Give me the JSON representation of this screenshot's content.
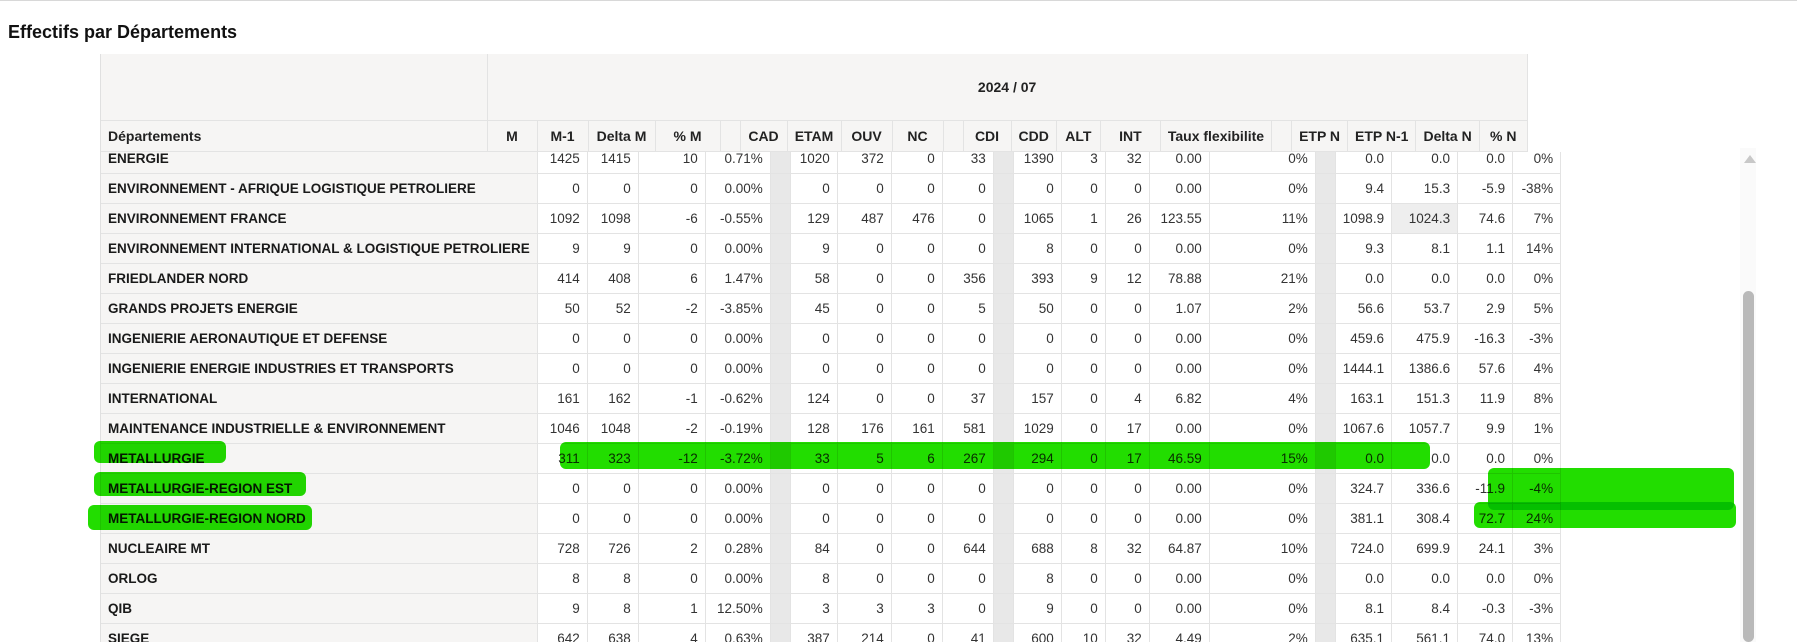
{
  "page_title": "Effectifs par Départements",
  "period": "2024 / 07",
  "columns": {
    "dept": "Départements",
    "m": "M",
    "m1": "M-1",
    "delta_m": "Delta M",
    "pct_m": "% M",
    "cad": "CAD",
    "etam": "ETAM",
    "ouv": "OUV",
    "nc": "NC",
    "cdi": "CDI",
    "cdd": "CDD",
    "alt": "ALT",
    "int": "INT",
    "taux": "Taux flexibilite",
    "etp_n": "ETP N",
    "etp_n1": "ETP N-1",
    "delta_n": "Delta N",
    "pct_n": "% N"
  },
  "rows": [
    {
      "dept": "ENERGIE",
      "m": "1425",
      "m1": "1415",
      "delta_m": "10",
      "pct_m": "0.71%",
      "cad": "1020",
      "etam": "372",
      "ouv": "0",
      "nc": "33",
      "cdi": "1390",
      "cdd": "3",
      "alt": "32",
      "int": "0.00",
      "taux": "0%",
      "etp_n": "0.0",
      "etp_n1": "0.0",
      "delta_n": "0.0",
      "pct_n": "0%"
    },
    {
      "dept": "ENVIRONNEMENT - AFRIQUE LOGISTIQUE PETROLIERE",
      "m": "0",
      "m1": "0",
      "delta_m": "0",
      "pct_m": "0.00%",
      "cad": "0",
      "etam": "0",
      "ouv": "0",
      "nc": "0",
      "cdi": "0",
      "cdd": "0",
      "alt": "0",
      "int": "0.00",
      "taux": "0%",
      "etp_n": "9.4",
      "etp_n1": "15.3",
      "delta_n": "-5.9",
      "pct_n": "-38%"
    },
    {
      "dept": "ENVIRONNEMENT FRANCE",
      "m": "1092",
      "m1": "1098",
      "delta_m": "-6",
      "pct_m": "-0.55%",
      "cad": "129",
      "etam": "487",
      "ouv": "476",
      "nc": "0",
      "cdi": "1065",
      "cdd": "1",
      "alt": "26",
      "int": "123.55",
      "taux": "11%",
      "etp_n": "1098.9",
      "etp_n1": "1024.3",
      "delta_n": "74.6",
      "pct_n": "7%"
    },
    {
      "dept": "ENVIRONNEMENT INTERNATIONAL & LOGISTIQUE PETROLIERE",
      "m": "9",
      "m1": "9",
      "delta_m": "0",
      "pct_m": "0.00%",
      "cad": "9",
      "etam": "0",
      "ouv": "0",
      "nc": "0",
      "cdi": "8",
      "cdd": "0",
      "alt": "0",
      "int": "0.00",
      "taux": "0%",
      "etp_n": "9.3",
      "etp_n1": "8.1",
      "delta_n": "1.1",
      "pct_n": "14%"
    },
    {
      "dept": "FRIEDLANDER NORD",
      "m": "414",
      "m1": "408",
      "delta_m": "6",
      "pct_m": "1.47%",
      "cad": "58",
      "etam": "0",
      "ouv": "0",
      "nc": "356",
      "cdi": "393",
      "cdd": "9",
      "alt": "12",
      "int": "78.88",
      "taux": "21%",
      "etp_n": "0.0",
      "etp_n1": "0.0",
      "delta_n": "0.0",
      "pct_n": "0%"
    },
    {
      "dept": "GRANDS PROJETS ENERGIE",
      "m": "50",
      "m1": "52",
      "delta_m": "-2",
      "pct_m": "-3.85%",
      "cad": "45",
      "etam": "0",
      "ouv": "0",
      "nc": "5",
      "cdi": "50",
      "cdd": "0",
      "alt": "0",
      "int": "1.07",
      "taux": "2%",
      "etp_n": "56.6",
      "etp_n1": "53.7",
      "delta_n": "2.9",
      "pct_n": "5%"
    },
    {
      "dept": "INGENIERIE AERONAUTIQUE ET DEFENSE",
      "m": "0",
      "m1": "0",
      "delta_m": "0",
      "pct_m": "0.00%",
      "cad": "0",
      "etam": "0",
      "ouv": "0",
      "nc": "0",
      "cdi": "0",
      "cdd": "0",
      "alt": "0",
      "int": "0.00",
      "taux": "0%",
      "etp_n": "459.6",
      "etp_n1": "475.9",
      "delta_n": "-16.3",
      "pct_n": "-3%"
    },
    {
      "dept": "INGENIERIE ENERGIE INDUSTRIES ET TRANSPORTS",
      "m": "0",
      "m1": "0",
      "delta_m": "0",
      "pct_m": "0.00%",
      "cad": "0",
      "etam": "0",
      "ouv": "0",
      "nc": "0",
      "cdi": "0",
      "cdd": "0",
      "alt": "0",
      "int": "0.00",
      "taux": "0%",
      "etp_n": "1444.1",
      "etp_n1": "1386.6",
      "delta_n": "57.6",
      "pct_n": "4%"
    },
    {
      "dept": "INTERNATIONAL",
      "m": "161",
      "m1": "162",
      "delta_m": "-1",
      "pct_m": "-0.62%",
      "cad": "124",
      "etam": "0",
      "ouv": "0",
      "nc": "37",
      "cdi": "157",
      "cdd": "0",
      "alt": "4",
      "int": "6.82",
      "taux": "4%",
      "etp_n": "163.1",
      "etp_n1": "151.3",
      "delta_n": "11.9",
      "pct_n": "8%"
    },
    {
      "dept": "MAINTENANCE INDUSTRIELLE & ENVIRONNEMENT",
      "m": "1046",
      "m1": "1048",
      "delta_m": "-2",
      "pct_m": "-0.19%",
      "cad": "128",
      "etam": "176",
      "ouv": "161",
      "nc": "581",
      "cdi": "1029",
      "cdd": "0",
      "alt": "17",
      "int": "0.00",
      "taux": "0%",
      "etp_n": "1067.6",
      "etp_n1": "1057.7",
      "delta_n": "9.9",
      "pct_n": "1%"
    },
    {
      "dept": "METALLURGIE",
      "m": "311",
      "m1": "323",
      "delta_m": "-12",
      "pct_m": "-3.72%",
      "cad": "33",
      "etam": "5",
      "ouv": "6",
      "nc": "267",
      "cdi": "294",
      "cdd": "0",
      "alt": "17",
      "int": "46.59",
      "taux": "15%",
      "etp_n": "0.0",
      "etp_n1": "0.0",
      "delta_n": "0.0",
      "pct_n": "0%"
    },
    {
      "dept": "METALLURGIE-REGION EST",
      "m": "0",
      "m1": "0",
      "delta_m": "0",
      "pct_m": "0.00%",
      "cad": "0",
      "etam": "0",
      "ouv": "0",
      "nc": "0",
      "cdi": "0",
      "cdd": "0",
      "alt": "0",
      "int": "0.00",
      "taux": "0%",
      "etp_n": "324.7",
      "etp_n1": "336.6",
      "delta_n": "-11.9",
      "pct_n": "-4%"
    },
    {
      "dept": "METALLURGIE-REGION NORD",
      "m": "0",
      "m1": "0",
      "delta_m": "0",
      "pct_m": "0.00%",
      "cad": "0",
      "etam": "0",
      "ouv": "0",
      "nc": "0",
      "cdi": "0",
      "cdd": "0",
      "alt": "0",
      "int": "0.00",
      "taux": "0%",
      "etp_n": "381.1",
      "etp_n1": "308.4",
      "delta_n": "72.7",
      "pct_n": "24%"
    },
    {
      "dept": "NUCLEAIRE MT",
      "m": "728",
      "m1": "726",
      "delta_m": "2",
      "pct_m": "0.28%",
      "cad": "84",
      "etam": "0",
      "ouv": "0",
      "nc": "644",
      "cdi": "688",
      "cdd": "8",
      "alt": "32",
      "int": "64.87",
      "taux": "10%",
      "etp_n": "724.0",
      "etp_n1": "699.9",
      "delta_n": "24.1",
      "pct_n": "3%"
    },
    {
      "dept": "ORLOG",
      "m": "8",
      "m1": "8",
      "delta_m": "0",
      "pct_m": "0.00%",
      "cad": "8",
      "etam": "0",
      "ouv": "0",
      "nc": "0",
      "cdi": "8",
      "cdd": "0",
      "alt": "0",
      "int": "0.00",
      "taux": "0%",
      "etp_n": "0.0",
      "etp_n1": "0.0",
      "delta_n": "0.0",
      "pct_n": "0%"
    },
    {
      "dept": "QIB",
      "m": "9",
      "m1": "8",
      "delta_m": "1",
      "pct_m": "12.50%",
      "cad": "3",
      "etam": "3",
      "ouv": "3",
      "nc": "0",
      "cdi": "9",
      "cdd": "0",
      "alt": "0",
      "int": "0.00",
      "taux": "0%",
      "etp_n": "8.1",
      "etp_n1": "8.4",
      "delta_n": "-0.3",
      "pct_n": "-3%"
    },
    {
      "dept": "SIEGE",
      "m": "642",
      "m1": "638",
      "delta_m": "4",
      "pct_m": "0.63%",
      "cad": "387",
      "etam": "214",
      "ouv": "0",
      "nc": "41",
      "cdi": "600",
      "cdd": "10",
      "alt": "32",
      "int": "4.49",
      "taux": "2%",
      "etp_n": "635.1",
      "etp_n1": "561.1",
      "delta_n": "74.0",
      "pct_n": "13%"
    }
  ],
  "highlight_color": "#22dd00"
}
